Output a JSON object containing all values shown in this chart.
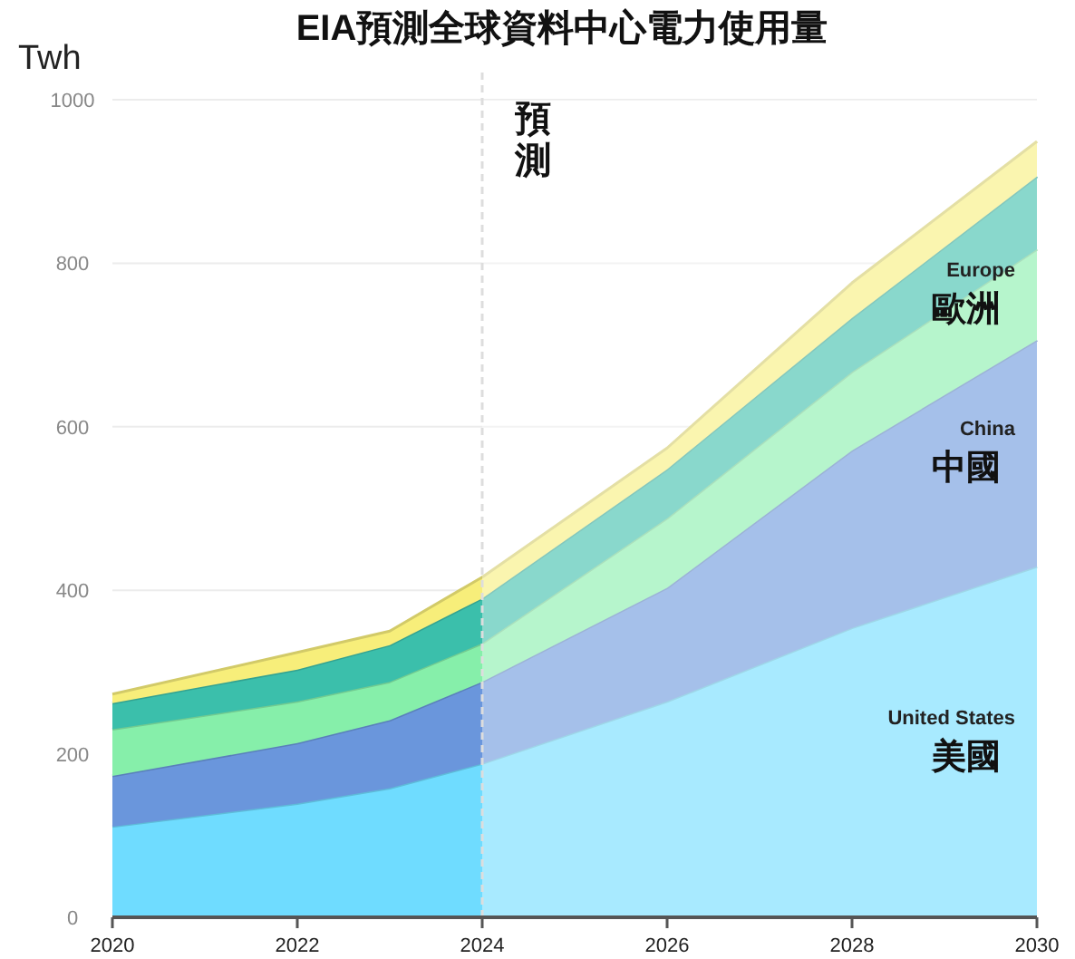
{
  "chart_data": {
    "type": "area",
    "stacked": true,
    "title": "EIA預測全球資料中心電力使用量",
    "ylabel": "Twh",
    "x": [
      2020,
      2022,
      2023,
      2024,
      2026,
      2028,
      2030
    ],
    "xlim": [
      2020,
      2030
    ],
    "xticks": [
      2020,
      2022,
      2024,
      2026,
      2028,
      2030
    ],
    "ylim": [
      0,
      1000
    ],
    "yticks": [
      0,
      200,
      400,
      600,
      800,
      1000
    ],
    "grid": "y",
    "series": [
      {
        "name": "United States\n美國",
        "color": "#6fdcff",
        "values": [
          111,
          139,
          158,
          188,
          264,
          354,
          429
        ]
      },
      {
        "name": "China\n中國",
        "color": "#6a96dc",
        "values": [
          62,
          74,
          83,
          100,
          139,
          217,
          277
        ]
      },
      {
        "name": "Europe\n歐洲",
        "color": "#86efaa",
        "values": [
          57,
          51,
          47,
          47,
          85,
          96,
          111
        ]
      },
      {
        "color": "#3bbfab",
        "values": [
          32,
          39,
          45,
          55,
          60,
          66,
          89
        ]
      },
      {
        "color": "#f7ee7a",
        "values": [
          11,
          21,
          17,
          26,
          26,
          43,
          43
        ]
      }
    ],
    "ref_lines": [
      {
        "axis": "x",
        "value": 2024,
        "label": "預測",
        "line_style": "dashed",
        "color": "#dddddd"
      }
    ],
    "bands": [
      {
        "axis": "x",
        "from": 2024,
        "to": 2030,
        "color": "#ffffff"
      }
    ]
  }
}
